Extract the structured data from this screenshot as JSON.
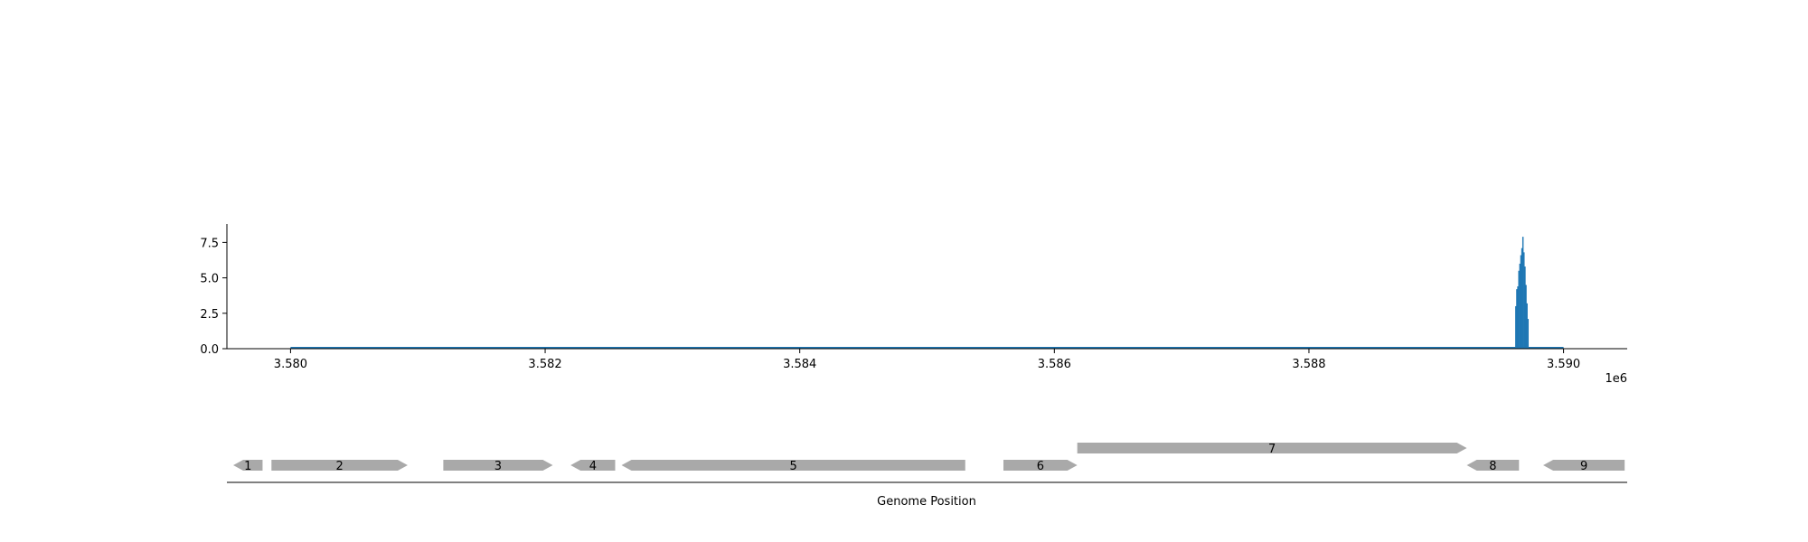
{
  "chart_data": [
    {
      "type": "area",
      "xlabel": "",
      "ylabel": "",
      "x_offset_label": "1e6",
      "xlim": [
        3579500,
        3590500
      ],
      "ylim": [
        0,
        8.8
      ],
      "x_ticks": [
        3580000,
        3582000,
        3584000,
        3586000,
        3588000,
        3590000
      ],
      "x_tick_labels": [
        "3.580",
        "3.582",
        "3.584",
        "3.586",
        "3.588",
        "3.590"
      ],
      "y_ticks": [
        0,
        2.5,
        5,
        7.5
      ],
      "y_tick_labels": [
        "0.0",
        "2.5",
        "5.0",
        "7.5"
      ],
      "color": "#1f77b4",
      "coverage_start": 3580000,
      "coverage_end": 3590000,
      "baseline_value": 0,
      "peak": {
        "x": [
          3589620,
          3589628,
          3589636,
          3589644,
          3589652,
          3589660,
          3589668,
          3589676,
          3589684,
          3589692,
          3589700,
          3589708,
          3589716
        ],
        "y": [
          3.0,
          4.2,
          4.4,
          5.5,
          6.0,
          6.6,
          7.1,
          7.9,
          6.8,
          5.8,
          4.5,
          3.2,
          2.1
        ]
      }
    },
    {
      "type": "gene-track",
      "xlabel": "Genome Position",
      "xlim": [
        3579500,
        3590500
      ],
      "color": "#a9a9a9",
      "genes": [
        {
          "label": "1",
          "start": 3579550,
          "end": 3579780,
          "strand": "-",
          "row": 0
        },
        {
          "label": "2",
          "start": 3579850,
          "end": 3580920,
          "strand": "+",
          "row": 0
        },
        {
          "label": "3",
          "start": 3581200,
          "end": 3582060,
          "strand": "+",
          "row": 0
        },
        {
          "label": "4",
          "start": 3582200,
          "end": 3582550,
          "strand": "-",
          "row": 0
        },
        {
          "label": "5",
          "start": 3582600,
          "end": 3585300,
          "strand": "-",
          "row": 0
        },
        {
          "label": "6",
          "start": 3585600,
          "end": 3586180,
          "strand": "+",
          "row": 0
        },
        {
          "label": "7",
          "start": 3586180,
          "end": 3589240,
          "strand": "+",
          "row": 1
        },
        {
          "label": "8",
          "start": 3589240,
          "end": 3589650,
          "strand": "-",
          "row": 0
        },
        {
          "label": "9",
          "start": 3589840,
          "end": 3590480,
          "strand": "-",
          "row": 0
        }
      ]
    }
  ]
}
